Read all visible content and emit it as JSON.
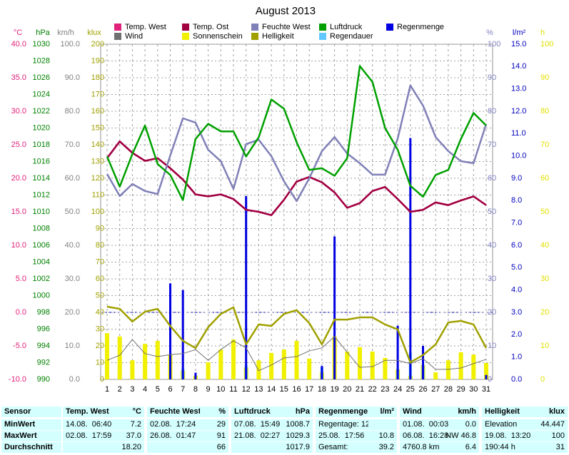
{
  "chart_data": {
    "type": "line",
    "title": "August 2013",
    "x": [
      1,
      2,
      3,
      4,
      5,
      6,
      7,
      8,
      9,
      10,
      11,
      12,
      13,
      14,
      15,
      16,
      17,
      18,
      19,
      20,
      21,
      22,
      23,
      24,
      25,
      26,
      27,
      28,
      29,
      30,
      31
    ],
    "xlim": [
      1,
      31
    ],
    "xgrid": true,
    "axes": [
      {
        "label": "°C",
        "side": "left",
        "color": "#e0207a",
        "lim": [
          -10,
          40
        ],
        "reference_line": 0,
        "ticks": [
          {
            "value": 40,
            "label": "40.0"
          },
          {
            "value": 35,
            "label": "35.0"
          },
          {
            "value": 30,
            "label": "30.0"
          },
          {
            "value": 25,
            "label": "25.0"
          },
          {
            "value": 20,
            "label": "20.0"
          },
          {
            "value": 15,
            "label": "15.0"
          },
          {
            "value": 10,
            "label": "10.0"
          },
          {
            "value": 5,
            "label": "5.0"
          },
          {
            "value": 0,
            "label": "0.0"
          },
          {
            "value": -5,
            "label": "-5.0"
          },
          {
            "value": -10,
            "label": "-10.0"
          }
        ]
      },
      {
        "label": "hPa",
        "side": "left",
        "color": "#008000",
        "lim": [
          990,
          1030
        ],
        "ticks": [
          1030,
          1028,
          1026,
          1024,
          1022,
          1020,
          1018,
          1016,
          1014,
          1012,
          1010,
          1008,
          1006,
          1004,
          1002,
          1000,
          998,
          996,
          994,
          992,
          990
        ]
      },
      {
        "label": "km/h",
        "side": "left",
        "color": "#808080",
        "lim": [
          0,
          100
        ],
        "ticks": [
          {
            "value": 100,
            "label": "100.0"
          },
          {
            "value": 90,
            "label": "90.0"
          },
          {
            "value": 80,
            "label": "80.0"
          },
          {
            "value": 70,
            "label": "70.0"
          },
          {
            "value": 60,
            "label": "60.0"
          },
          {
            "value": 50,
            "label": "50.0"
          },
          {
            "value": 40,
            "label": "40.0"
          },
          {
            "value": 30,
            "label": "30.0"
          },
          {
            "value": 20,
            "label": "20.0"
          },
          {
            "value": 10,
            "label": "10.0"
          },
          {
            "value": 0,
            "label": "0.0"
          }
        ]
      },
      {
        "label": "klux",
        "side": "left",
        "color": "#a0a000",
        "lim": [
          0,
          200
        ],
        "grid": true,
        "ticks": [
          200,
          190,
          180,
          170,
          160,
          150,
          140,
          130,
          120,
          110,
          100,
          90,
          80,
          70,
          60,
          50,
          40,
          30,
          20,
          10,
          0
        ]
      },
      {
        "label": "%",
        "side": "right",
        "color": "#8080c0",
        "lim": [
          0,
          100
        ],
        "ticks": [
          100,
          90,
          80,
          70,
          60,
          50,
          40,
          30,
          20,
          10,
          0
        ]
      },
      {
        "label": "l/m²",
        "side": "right",
        "color": "#0000c0",
        "lim": [
          0,
          15
        ],
        "ticks": [
          {
            "value": 15,
            "label": "15.0"
          },
          {
            "value": 14,
            "label": "14.0"
          },
          {
            "value": 13,
            "label": "13.0"
          },
          {
            "value": 12,
            "label": "12.0"
          },
          {
            "value": 11,
            "label": "11.0"
          },
          {
            "value": 10,
            "label": "10.0"
          },
          {
            "value": 9,
            "label": "9.0"
          },
          {
            "value": 8,
            "label": "8.0"
          },
          {
            "value": 7,
            "label": "7.0"
          },
          {
            "value": 6,
            "label": "6.0"
          },
          {
            "value": 5,
            "label": "5.0"
          },
          {
            "value": 4,
            "label": "4.0"
          },
          {
            "value": 3,
            "label": "3.0"
          },
          {
            "value": 2,
            "label": "2.0"
          },
          {
            "value": 1,
            "label": "1.0"
          },
          {
            "value": 0,
            "label": "0.0"
          }
        ]
      },
      {
        "label": "h",
        "side": "right",
        "color": "#e0e000",
        "lim": [
          0,
          100
        ],
        "ticks": [
          100,
          90,
          80,
          70,
          60,
          50,
          40,
          30,
          20,
          10,
          0
        ]
      }
    ],
    "series": [
      {
        "name": "Temp. West",
        "kind": "line",
        "axis": 0,
        "color": "#e0207a",
        "values": [
          23.0,
          25.5,
          23.8,
          22.6,
          23.0,
          21.5,
          19.8,
          17.6,
          17.3,
          17.6,
          16.9,
          15.3,
          15.0,
          14.5,
          16.8,
          19.5,
          20.2,
          19.4,
          17.9,
          15.6,
          16.3,
          18.1,
          18.7,
          16.9,
          15.0,
          15.3,
          16.4,
          16.0,
          16.7,
          17.3,
          16.0
        ]
      },
      {
        "name": "Wind",
        "kind": "line",
        "axis": 2,
        "color": "#707070",
        "values": [
          5.7,
          7.2,
          11.9,
          7.7,
          6.8,
          7.4,
          7.7,
          8.9,
          5.7,
          8.9,
          11.5,
          9.4,
          2.6,
          4.3,
          6.4,
          6.8,
          8.5,
          9.4,
          12.8,
          8.1,
          3.6,
          3.8,
          5.7,
          5.7,
          4.7,
          6.2,
          3.0,
          3.0,
          3.4,
          4.7,
          6.0
        ]
      },
      {
        "name": "Temp. Ost",
        "kind": "line",
        "axis": 0,
        "color": "#a00040",
        "values": [
          23.0,
          25.5,
          23.8,
          22.6,
          23.0,
          21.5,
          19.8,
          17.6,
          17.3,
          17.6,
          16.9,
          15.3,
          15.0,
          14.5,
          16.8,
          19.5,
          20.2,
          19.4,
          17.9,
          15.6,
          16.3,
          18.1,
          18.7,
          16.9,
          15.0,
          15.3,
          16.4,
          16.0,
          16.7,
          17.3,
          16.0
        ]
      },
      {
        "name": "Sonnenschein",
        "kind": "bar",
        "axis": 6,
        "color": "#f0f000",
        "values": [
          13.8,
          12.8,
          5.7,
          10.6,
          11.5,
          7.4,
          2.6,
          1.1,
          5.1,
          8.9,
          11.9,
          3.6,
          5.7,
          7.9,
          8.9,
          11.5,
          6.2,
          2.1,
          12.8,
          8.3,
          9.6,
          8.3,
          6.4,
          3.0,
          1.1,
          4.3,
          2.1,
          5.7,
          8.1,
          7.4,
          4.9
        ]
      },
      {
        "name": "Feuchte West",
        "kind": "line",
        "axis": 4,
        "color": "#8080b8",
        "values": [
          61.3,
          54.7,
          58.3,
          56.2,
          55.3,
          66.8,
          77.9,
          76.6,
          68.5,
          65.1,
          56.8,
          70.2,
          71.5,
          66.6,
          59.1,
          53.2,
          60.0,
          68.1,
          72.3,
          67.4,
          64.5,
          61.1,
          61.1,
          71.9,
          87.7,
          81.7,
          72.3,
          68.1,
          65.1,
          64.5,
          76.2
        ]
      },
      {
        "name": "Helligkeit",
        "kind": "line",
        "axis": 3,
        "color": "#a0a000",
        "values": [
          43.4,
          42.1,
          34.5,
          40.4,
          42.1,
          31.9,
          23.0,
          18.7,
          31.1,
          39.1,
          43.0,
          20.9,
          32.8,
          31.9,
          39.1,
          41.3,
          33.6,
          20.9,
          35.7,
          35.7,
          37.0,
          37.0,
          32.8,
          29.8,
          10.2,
          14.5,
          20.9,
          34.0,
          34.9,
          32.8,
          18.7
        ]
      },
      {
        "name": "Luftdruck",
        "kind": "line",
        "axis": 1,
        "color": "#00a000",
        "values": [
          1016.6,
          1013.0,
          1016.9,
          1020.3,
          1015.7,
          1014.4,
          1011.4,
          1018.7,
          1020.5,
          1019.6,
          1019.6,
          1016.6,
          1018.9,
          1023.4,
          1022.3,
          1018.3,
          1015.0,
          1015.2,
          1014.3,
          1016.4,
          1027.4,
          1025.5,
          1020.0,
          1017.4,
          1013.1,
          1011.8,
          1014.4,
          1015.0,
          1018.7,
          1021.8,
          1020.3
        ]
      },
      {
        "name": "Regendauer",
        "kind": "bar",
        "axis": 6,
        "color": "#60c8ff",
        "values": [
          0,
          0,
          0,
          0,
          0,
          0,
          3.2,
          0,
          0,
          0,
          0,
          4.3,
          0,
          0,
          0,
          0,
          0,
          3.6,
          0,
          0,
          0,
          0,
          0,
          3.0,
          7.9,
          4.3,
          0,
          0,
          0,
          0,
          0
        ]
      },
      {
        "name": "Regenmenge",
        "kind": "bar",
        "axis": 5,
        "color": "#0000e0",
        "values": [
          0,
          0,
          0,
          0,
          0,
          4.3,
          4.0,
          0.3,
          0,
          0,
          0,
          8.2,
          0,
          0,
          0,
          0,
          0,
          0.6,
          6.4,
          0,
          0,
          0,
          0,
          2.4,
          10.8,
          1.5,
          0,
          0,
          0,
          0,
          0.2
        ]
      }
    ]
  },
  "table": {
    "first_column": [
      "Sensor",
      "MinWert",
      "MaxWert",
      "Durchschnitt"
    ],
    "groups": [
      {
        "title": "Temp. West",
        "unit": "°C",
        "rows": [
          {
            "label": "14.08.  06:40",
            "value": "7.2"
          },
          {
            "label": "02.08.  17:59",
            "value": "37.0"
          },
          {
            "value": "18.20"
          }
        ]
      },
      {
        "title": "Feuchte West",
        "unit": "%",
        "rows": [
          {
            "label": "02.08.  17:24",
            "value": "29"
          },
          {
            "label": "26.08.  01:47",
            "value": "91"
          },
          {
            "value": "66"
          }
        ]
      },
      {
        "title": "Luftdruck",
        "unit": "hPa",
        "rows": [
          {
            "label": "07.08.  15:49",
            "value": "1008.7"
          },
          {
            "label": "21.08.  02:27",
            "value": "1029.3"
          },
          {
            "value": "1017.9"
          }
        ]
      },
      {
        "title": "Regenmenge",
        "unit": "l/m²",
        "rows": [
          {
            "label": "Regentage: 12"
          },
          {
            "label": "25.08.  17:56",
            "value": "10.8"
          },
          {
            "label": "Gesamt:",
            "value": "39.2"
          }
        ]
      },
      {
        "title": "Wind",
        "unit": "km/h",
        "rows": [
          {
            "label": "01.08.  00:03",
            "value": "0.0"
          },
          {
            "label": "06.08.  16:28",
            "value": "NW 46.8"
          },
          {
            "label": "4760.8 km",
            "value": "6.4"
          }
        ]
      },
      {
        "title": "Helligkeit",
        "unit": "klux",
        "rows": [
          {
            "label": "Elevation",
            "value": "44.447"
          },
          {
            "label": "19.08.  13:20",
            "value": "100"
          },
          {
            "label": "190:44 h",
            "value": "31"
          }
        ]
      }
    ]
  }
}
